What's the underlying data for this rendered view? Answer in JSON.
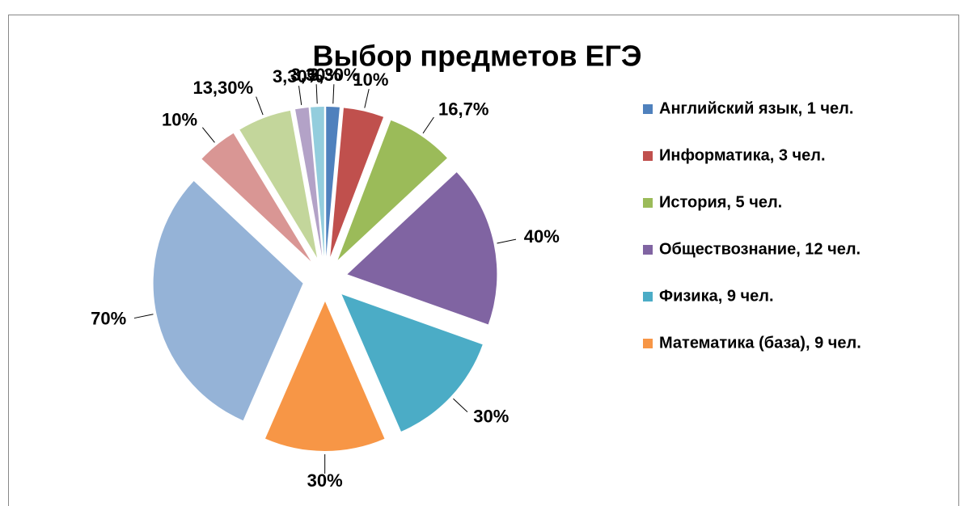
{
  "chart_data": {
    "type": "pie",
    "title": "Выбор предметов ЕГЭ",
    "categories": [
      "Английский язык, 1 чел.",
      "Информатика, 3 чел.",
      "История, 5 чел.",
      "Обществознание, 12 чел.",
      "Физика, 9 чел.",
      "Математика (база), 9 чел.",
      null,
      null,
      null,
      null,
      null
    ],
    "values": [
      3.3,
      10,
      16.7,
      40,
      30,
      30,
      70,
      10,
      13.3,
      3.3,
      3.3
    ],
    "value_labels": [
      "3,30%",
      "10%",
      "16,7%",
      "40%",
      "30%",
      "30%",
      "70%",
      "10%",
      "13,30%",
      "3,30%",
      "3,30%"
    ],
    "colors": [
      "#4f81bd",
      "#c0504d",
      "#9bbb59",
      "#8064a2",
      "#4bacc6",
      "#f79646",
      "#95b3d7",
      "#d99694",
      "#c3d69b",
      "#b3a2c7",
      "#93cddd"
    ],
    "legend": "right"
  }
}
